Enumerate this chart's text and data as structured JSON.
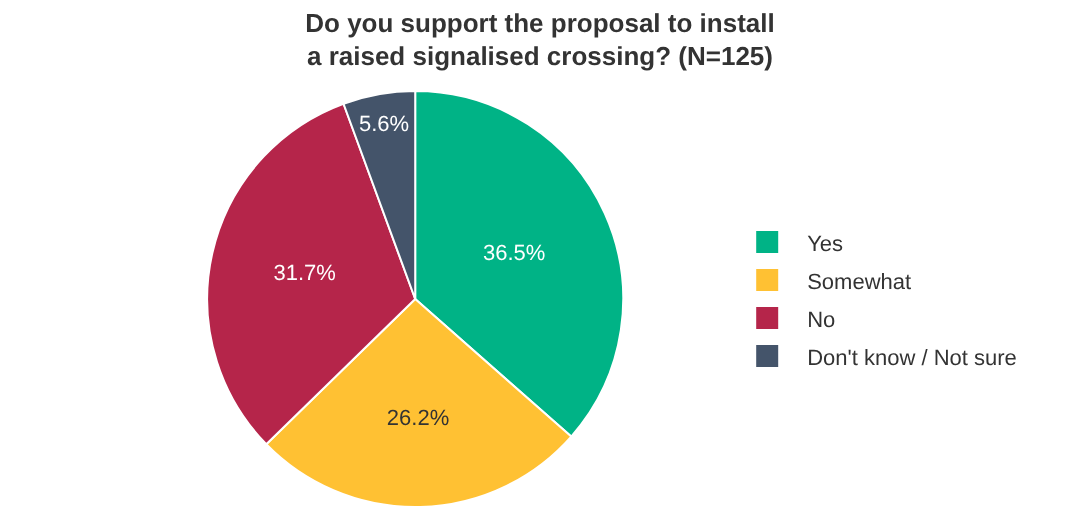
{
  "chart_data": {
    "type": "pie",
    "title": "Do you support the proposal to install a raised signalised crossing? (N=125)",
    "categories": [
      "Yes",
      "Somewhat",
      "No",
      "Don't know / Not sure"
    ],
    "values": [
      36.5,
      26.2,
      31.7,
      5.6
    ],
    "colors": [
      "#00b386",
      "#ffc133",
      "#b5254a",
      "#44546a"
    ],
    "value_labels": [
      "36.5%",
      "26.2%",
      "31.7%",
      "5.6%"
    ],
    "legend": "right"
  }
}
